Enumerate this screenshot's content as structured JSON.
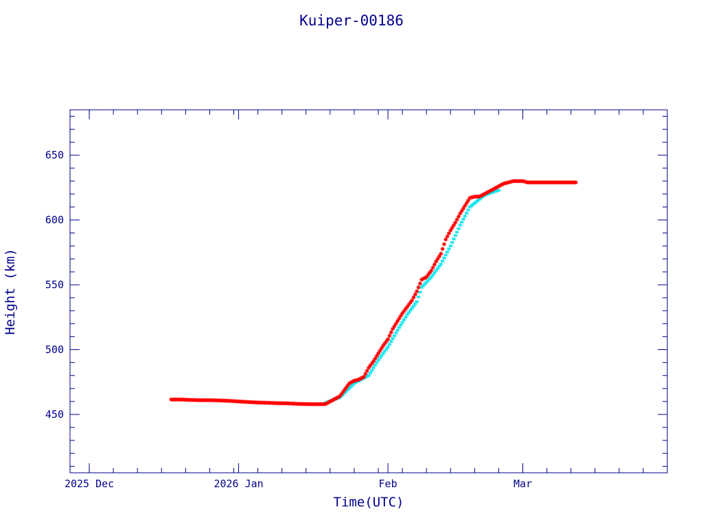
{
  "chart_data": {
    "type": "scatter",
    "title": "Kuiper-00186",
    "xlabel": "Time(UTC)",
    "ylabel": "Height (km)",
    "xlim": [
      "2025-11-27",
      "2026-03-31"
    ],
    "ylim": [
      405,
      685
    ],
    "x_ticks": [
      {
        "date": "2025-12-01",
        "label": "2025 Dec"
      },
      {
        "date": "2026-01-01",
        "label": "2026 Jan"
      },
      {
        "date": "2026-02-01",
        "label": "Feb"
      },
      {
        "date": "2026-03-01",
        "label": "Mar"
      }
    ],
    "y_ticks": [
      450,
      500,
      550,
      600,
      650
    ],
    "grid": false,
    "colors": {
      "axes": "#00008b",
      "series_primary": "#ff0000",
      "series_secondary": "#00e5ee"
    },
    "series": [
      {
        "marker": "asterisk",
        "color": "#ff0000",
        "x": [
          "2025-12-18",
          "2025-12-20",
          "2025-12-22",
          "2025-12-24",
          "2025-12-26",
          "2025-12-28",
          "2025-12-30",
          "2026-01-01",
          "2026-01-03",
          "2026-01-05",
          "2026-01-07",
          "2026-01-09",
          "2026-01-11",
          "2026-01-13",
          "2026-01-15",
          "2026-01-17",
          "2026-01-19",
          "2026-01-20",
          "2026-01-21",
          "2026-01-22",
          "2026-01-23",
          "2026-01-24",
          "2026-01-25",
          "2026-01-26",
          "2026-01-27",
          "2026-01-28",
          "2026-01-29",
          "2026-01-30",
          "2026-01-31",
          "2026-02-01",
          "2026-02-02",
          "2026-02-03",
          "2026-02-04",
          "2026-02-05",
          "2026-02-06",
          "2026-02-07",
          "2026-02-08",
          "2026-02-09",
          "2026-02-10",
          "2026-02-11",
          "2026-02-12",
          "2026-02-13",
          "2026-02-14",
          "2026-02-15",
          "2026-02-16",
          "2026-02-17",
          "2026-02-18",
          "2026-02-19",
          "2026-02-20",
          "2026-02-21",
          "2026-02-22",
          "2026-02-23",
          "2026-02-24",
          "2026-02-25",
          "2026-02-26",
          "2026-02-27",
          "2026-02-28",
          "2026-03-01",
          "2026-03-02",
          "2026-03-03",
          "2026-03-04",
          "2026-03-05",
          "2026-03-06",
          "2026-03-08",
          "2026-03-10",
          "2026-03-12"
        ],
        "y": [
          461.5,
          461.5,
          461.2,
          461.0,
          461.0,
          460.8,
          460.5,
          460.0,
          459.6,
          459.2,
          459.0,
          458.7,
          458.6,
          458.2,
          458.0,
          457.9,
          458.0,
          460,
          462,
          464,
          469,
          474,
          476,
          477,
          479,
          486,
          491,
          497,
          503,
          508,
          516,
          522,
          528,
          533,
          538,
          545,
          554,
          556,
          561,
          568,
          574,
          585,
          592,
          598,
          605,
          611,
          617,
          618,
          618,
          620,
          622,
          624,
          626,
          628,
          629,
          630,
          630,
          630,
          629,
          629,
          629,
          629,
          629,
          629,
          629,
          629
        ]
      },
      {
        "marker": "cross",
        "color": "#00e5ee",
        "x": [
          "2026-01-19",
          "2026-01-22",
          "2026-01-25",
          "2026-01-28",
          "2026-01-30",
          "2026-02-01",
          "2026-02-03",
          "2026-02-05",
          "2026-02-07",
          "2026-02-08",
          "2026-02-10",
          "2026-02-12",
          "2026-02-14",
          "2026-02-16",
          "2026-02-18",
          "2026-02-21",
          "2026-02-24"
        ],
        "y": [
          459,
          463,
          474,
          480,
          492,
          502,
          515,
          527,
          537,
          548,
          556,
          566,
          580,
          596,
          610,
          619,
          623
        ]
      }
    ]
  }
}
